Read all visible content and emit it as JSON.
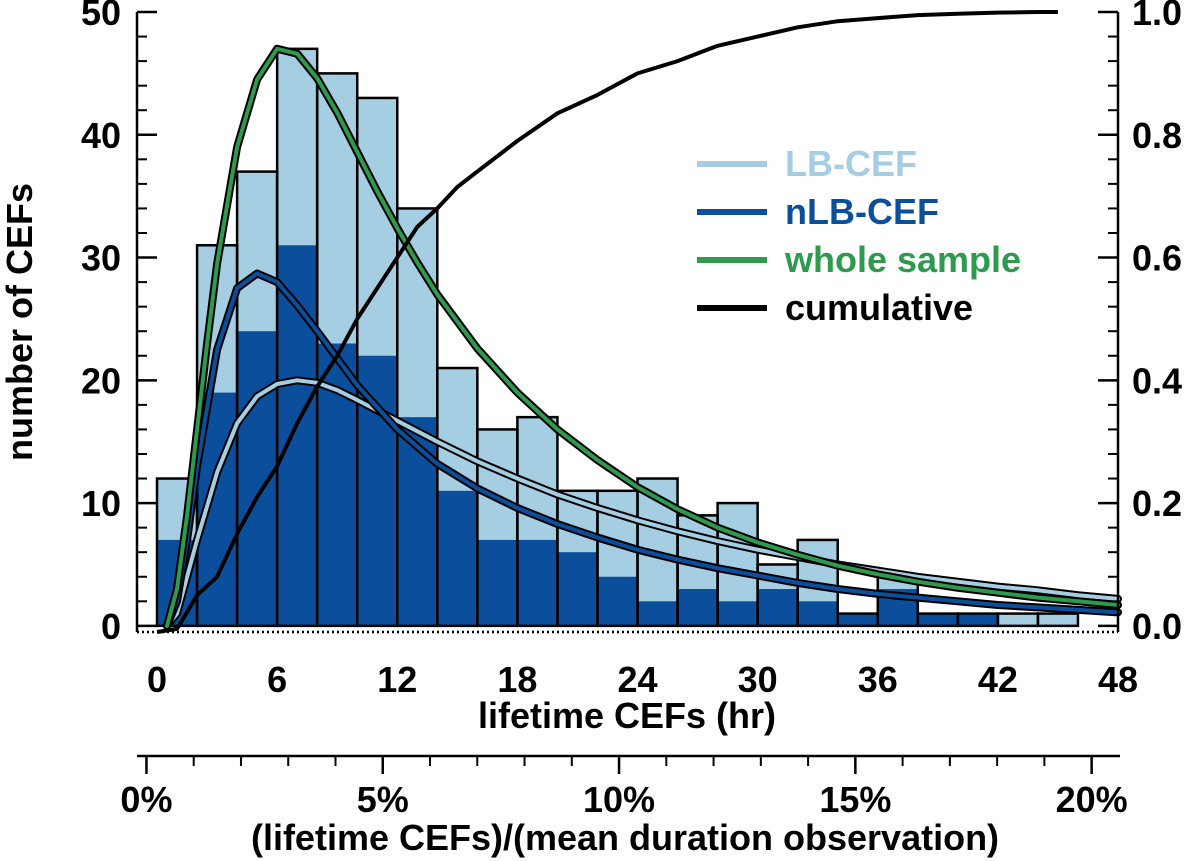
{
  "chart_data": {
    "type": "bar",
    "xlabel": "lifetime CEFs (hr)",
    "ylabel": "number of CEFs",
    "secondary_xlabel": "(lifetime CEFs)/(mean duration observation)",
    "x_ticks": [
      "0",
      "6",
      "12",
      "18",
      "24",
      "30",
      "36",
      "42",
      "48"
    ],
    "x_tick_values": [
      0,
      6,
      12,
      18,
      24,
      30,
      36,
      42,
      48
    ],
    "y_ticks": [
      "0",
      "10",
      "20",
      "30",
      "40",
      "50"
    ],
    "y_tick_values": [
      0,
      10,
      20,
      30,
      40,
      50
    ],
    "y2_ticks": [
      "0.0",
      "0.2",
      "0.4",
      "0.6",
      "0.8",
      "1.0"
    ],
    "y2_tick_values": [
      0,
      0.2,
      0.4,
      0.6,
      0.8,
      1.0
    ],
    "x2_ticks": [
      "0%",
      "5%",
      "10%",
      "15%",
      "20%"
    ],
    "x2_tick_values": [
      0,
      5,
      10,
      15,
      20
    ],
    "xlim": [
      -1,
      48
    ],
    "ylim": [
      -0.5,
      50
    ],
    "y2lim": [
      -0.01,
      1.0
    ],
    "x2lim": [
      -0.2,
      20.6
    ],
    "bin_width": 2,
    "bin_starts": [
      0,
      2,
      4,
      6,
      8,
      10,
      12,
      14,
      16,
      18,
      20,
      22,
      24,
      26,
      28,
      30,
      32,
      34,
      36,
      38,
      40,
      42,
      44,
      46
    ],
    "series": [
      {
        "name": "LB-CEF",
        "type": "histogram",
        "color": "#a6cee3",
        "values": [
          12,
          31,
          37,
          47,
          45,
          43,
          34,
          21,
          16,
          17,
          11,
          11,
          12,
          9,
          10,
          5,
          7,
          1,
          4,
          1,
          1,
          1,
          1,
          0
        ]
      },
      {
        "name": "nLB-CEF",
        "type": "histogram",
        "color": "#0b4f9c",
        "values": [
          7,
          19,
          24,
          31,
          23,
          22,
          17,
          11,
          7,
          7,
          6,
          4,
          2,
          3,
          2,
          3,
          2,
          1,
          3,
          1,
          1,
          0,
          0,
          0
        ]
      },
      {
        "name": "LB-CEF",
        "type": "fit-curve",
        "color": "#a6cee3",
        "x": [
          0.5,
          1,
          1.5,
          2,
          3,
          4,
          5,
          6,
          7,
          8,
          9,
          10,
          12,
          14,
          16,
          18,
          20,
          22,
          24,
          26,
          28,
          30,
          32,
          34,
          36,
          38,
          40,
          42,
          44,
          46,
          48
        ],
        "y": [
          0,
          1,
          4,
          7,
          12.5,
          16.5,
          18.7,
          19.7,
          20,
          19.8,
          19.2,
          18.4,
          16.7,
          15,
          13.4,
          12,
          10.7,
          9.6,
          8.6,
          7.7,
          6.9,
          6.2,
          5.6,
          5,
          4.5,
          4,
          3.6,
          3.2,
          2.9,
          2.5,
          2.2
        ]
      },
      {
        "name": "nLB-CEF",
        "type": "fit-curve",
        "color": "#0b4f9c",
        "x": [
          0.5,
          1,
          1.5,
          2,
          3,
          4,
          5,
          6,
          7,
          8,
          9,
          10,
          12,
          14,
          16,
          18,
          20,
          22,
          24,
          26,
          28,
          30,
          32,
          34,
          36,
          38,
          40,
          42,
          44,
          46,
          48
        ],
        "y": [
          0,
          2,
          7,
          13,
          22.5,
          27.5,
          28.7,
          28,
          26.1,
          24,
          21.8,
          19.6,
          16,
          13.2,
          11.2,
          9.6,
          8.3,
          7.2,
          6.2,
          5.4,
          4.7,
          4.1,
          3.5,
          3,
          2.6,
          2.3,
          2,
          1.7,
          1.5,
          1.3,
          1.1
        ]
      },
      {
        "name": "whole sample",
        "type": "fit-curve",
        "color": "#2e9a4e",
        "x": [
          0.5,
          1,
          1.5,
          2,
          2.5,
          3,
          4,
          5,
          6,
          7,
          8,
          9,
          10,
          11,
          12,
          13,
          14,
          16,
          18,
          20,
          22,
          24,
          26,
          28,
          30,
          32,
          34,
          36,
          38,
          40,
          42,
          44,
          46,
          48
        ],
        "y": [
          0,
          3,
          9,
          16,
          23,
          29.5,
          39,
          44.5,
          47,
          46.6,
          44.6,
          41.8,
          38.6,
          35.4,
          32.4,
          29.6,
          27,
          22.6,
          19,
          16,
          13.5,
          11.3,
          9.5,
          8,
          6.8,
          5.8,
          4.9,
          4.2,
          3.6,
          3.1,
          2.7,
          2.3,
          2,
          1.7
        ]
      },
      {
        "name": "cumulative",
        "type": "line",
        "axis": "right",
        "color": "#000000",
        "x": [
          0,
          1,
          2,
          3,
          4,
          5,
          6,
          7,
          8,
          9,
          10,
          11,
          12,
          13,
          14,
          15,
          16,
          18,
          20,
          22,
          24,
          26,
          28,
          30,
          32,
          34,
          36,
          38,
          40,
          42,
          44,
          45
        ],
        "y": [
          -0.01,
          -0.005,
          0.05,
          0.08,
          0.15,
          0.21,
          0.26,
          0.33,
          0.39,
          0.44,
          0.5,
          0.55,
          0.6,
          0.65,
          0.68,
          0.715,
          0.74,
          0.79,
          0.835,
          0.865,
          0.9,
          0.92,
          0.945,
          0.96,
          0.975,
          0.985,
          0.99,
          0.995,
          0.997,
          0.999,
          1.0,
          1.0
        ]
      }
    ],
    "legend": {
      "position": "upper-right",
      "entries": [
        {
          "label": "LB-CEF",
          "color": "#a6cee3"
        },
        {
          "label": "nLB-CEF",
          "color": "#0b4f9c"
        },
        {
          "label": "whole sample",
          "color": "#2e9a4e"
        },
        {
          "label": "cumulative",
          "color": "#000000"
        }
      ]
    }
  }
}
